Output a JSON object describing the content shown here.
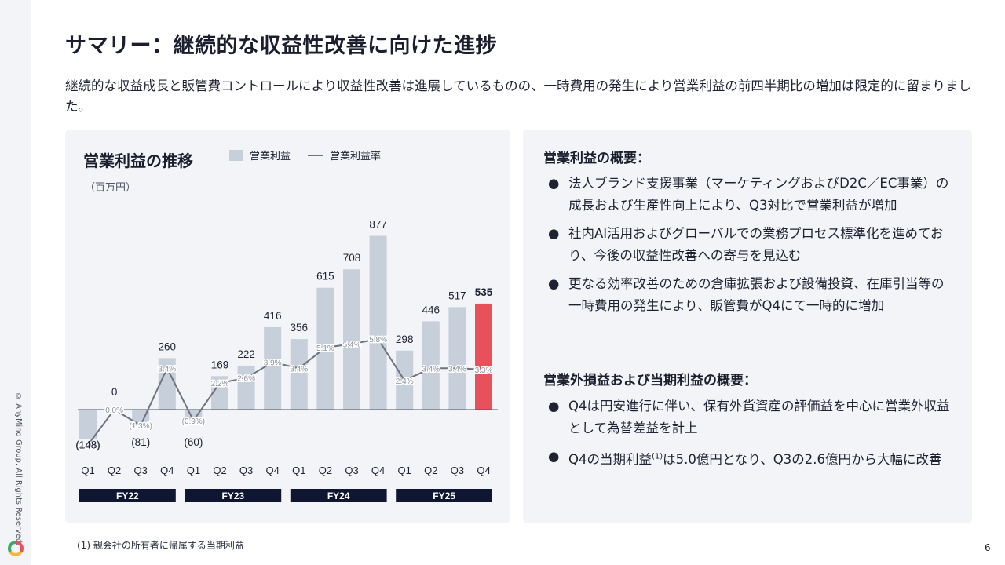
{
  "slide": {
    "title": "サマリー：継続的な収益性改善に向けた進捗",
    "subtitle": "継続的な収益成長と販管費コントロールにより収益性改善は進展しているものの、一時費用の発生により営業利益の前四半期比の増加は限定的に留まりました。",
    "copyright": "© AnyMind Group. All Rights Reserved.",
    "footnote": "(1) 親会社の所有者に帰属する当期利益",
    "page_number": "6"
  },
  "right_panel": {
    "section1_heading": "営業利益の概要：",
    "section1_bullets": [
      "法人ブランド支援事業（マーケティングおよびD2C／EC事業）の成長および生産性向上により、Q3対比で営業利益が増加",
      "社内AI活用およびグローバルでの業務プロセス標準化を進めており、今後の収益性改善への寄与を見込む",
      "更なる効率改善のための倉庫拡張および設備投資、在庫引当等の一時費用の発生により、販管費がQ4にて一時的に増加"
    ],
    "section2_heading": "営業外損益および当期利益の概要：",
    "section2_bullet1": "Q4は円安進行に伴い、保有外貨資産の評価益を中心に営業外収益として為替差益を計上",
    "section2_bullet2_pre": "Q4の当期利益",
    "section2_bullet2_sup": "(1)",
    "section2_bullet2_post": "は5.0億円となり、Q3の2.6億円から大幅に改善",
    "bullet_glyph": "●"
  },
  "chart_data": {
    "type": "bar",
    "title": "営業利益の推移",
    "unit": "（百万円）",
    "legend": [
      "営業利益",
      "営業利益率"
    ],
    "categories": [
      "Q1",
      "Q2",
      "Q3",
      "Q4",
      "Q1",
      "Q2",
      "Q3",
      "Q4",
      "Q1",
      "Q2",
      "Q3",
      "Q4",
      "Q1",
      "Q2",
      "Q3",
      "Q4"
    ],
    "fiscal_years": [
      {
        "label": "FY22",
        "start": 0,
        "end": 3
      },
      {
        "label": "FY23",
        "start": 4,
        "end": 7
      },
      {
        "label": "FY24",
        "start": 8,
        "end": 11
      },
      {
        "label": "FY25",
        "start": 12,
        "end": 15
      }
    ],
    "series": [
      {
        "name": "営業利益",
        "values": [
          -148,
          0,
          -81,
          260,
          -60,
          169,
          222,
          416,
          356,
          615,
          708,
          877,
          298,
          446,
          517,
          535
        ],
        "labels": [
          "(148)",
          "0",
          "(81)",
          "260",
          "(60)",
          "169",
          "222",
          "416",
          "356",
          "615",
          "708",
          "877",
          "298",
          "446",
          "517",
          "535"
        ]
      },
      {
        "name": "営業利益率",
        "values": [
          -2.9,
          0.0,
          -1.3,
          3.4,
          -0.9,
          2.2,
          2.6,
          3.9,
          3.4,
          5.1,
          5.4,
          5.8,
          2.4,
          3.4,
          3.4,
          3.3
        ],
        "labels": [
          "(2.9%)",
          "0.0%",
          "(1.3%)",
          "3.4%",
          "(0.9%)",
          "2.2%",
          "2.6%",
          "3.9%",
          "3.4%",
          "5.1%",
          "5.4%",
          "5.8%",
          "2.4%",
          "3.4%",
          "3.4%",
          "3.3%"
        ]
      }
    ],
    "colors": {
      "bar": "#c7cfda",
      "bar_highlight": "#e8505b",
      "line": "#6d7380",
      "fy_band": "#0e1631",
      "fy_text": "#ffffff"
    },
    "highlight_index": 15
  }
}
